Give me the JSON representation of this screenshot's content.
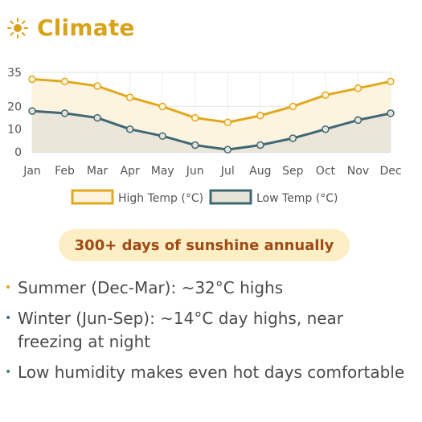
{
  "header": {
    "title": "Climate"
  },
  "colors": {
    "accent": "#d9a21b",
    "high": "#e1a81d",
    "high_fill": "#fdf3dd",
    "low": "#3f6875",
    "low_fill": "#e7e3d8",
    "badge_bg": "#fcefc6",
    "badge_text": "#a04a16",
    "bullet_dots": [
      "#d9a21b",
      "#3f6875",
      "#3a8a6a"
    ]
  },
  "icons": {
    "header": "sun-icon"
  },
  "chart_data": {
    "type": "area",
    "categories": [
      "Jan",
      "Feb",
      "Mar",
      "Apr",
      "May",
      "Jun",
      "Jul",
      "Aug",
      "Sep",
      "Oct",
      "Nov",
      "Dec"
    ],
    "series": [
      {
        "name": "High Temp (°C)",
        "values": [
          32,
          31,
          29,
          24,
          20,
          15,
          13,
          16,
          20,
          25,
          28,
          31
        ]
      },
      {
        "name": "Low Temp (°C)",
        "values": [
          18,
          17,
          15,
          10,
          7,
          3,
          1,
          3,
          6,
          10,
          14,
          17
        ]
      }
    ],
    "yticks": [
      0,
      10,
      20,
      35
    ],
    "ylim": [
      0,
      35
    ],
    "grid": true,
    "legend": "bottom"
  },
  "highlight": {
    "text": "300+ days of sunshine annually"
  },
  "bullets": [
    "Summer (Dec-Mar): ~32°C highs",
    "Winter (Jun-Sep): ~14°C day highs, near freezing at night",
    "Low humidity makes even hot days comfortable"
  ]
}
